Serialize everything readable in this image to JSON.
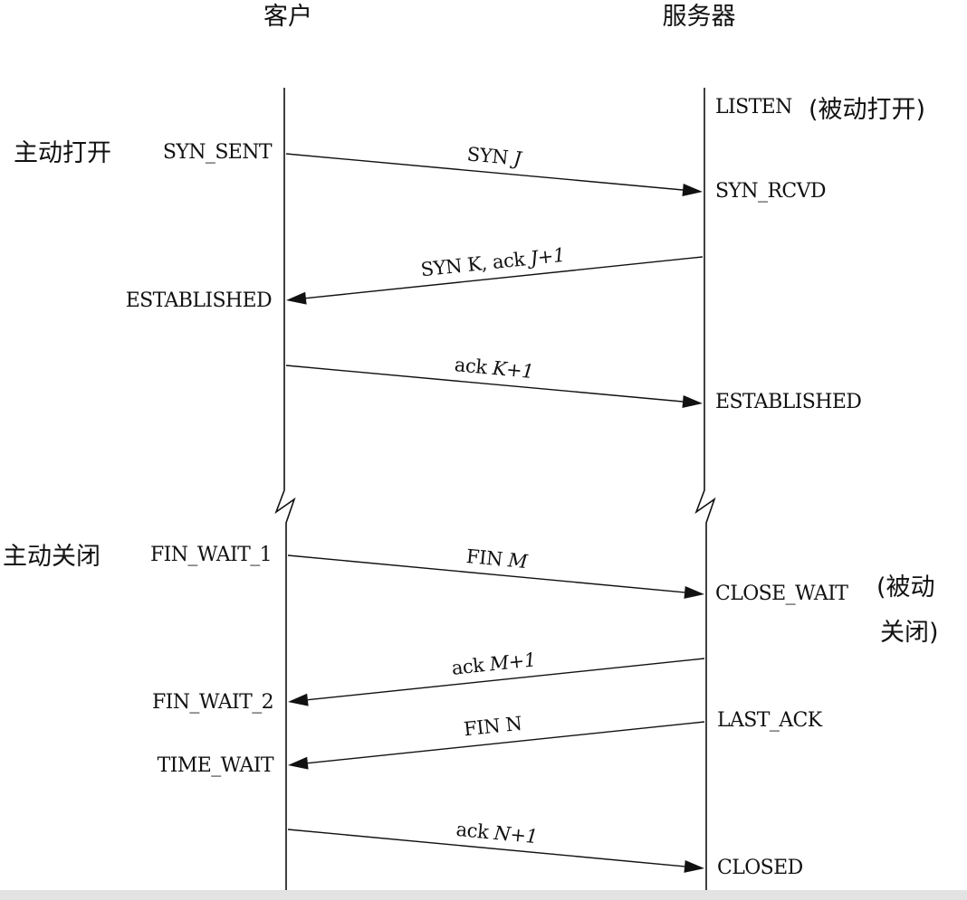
{
  "columns": {
    "client": "客户",
    "server": "服务器"
  },
  "client_notes": {
    "active_open": "主动打开",
    "active_close": "主动关闭"
  },
  "server_notes": {
    "passive_open": "(被动打开)",
    "passive_close_1": "(被动",
    "passive_close_2": "关闭)"
  },
  "client_states": {
    "syn_sent": "SYN_SENT",
    "established": "ESTABLISHED",
    "fin_wait_1": "FIN_WAIT_1",
    "fin_wait_2": "FIN_WAIT_2",
    "time_wait": "TIME_WAIT"
  },
  "server_states": {
    "listen": "LISTEN",
    "syn_rcvd": "SYN_RCVD",
    "established": "ESTABLISHED",
    "close_wait": "CLOSE_WAIT",
    "last_ack": "LAST_ACK",
    "closed": "CLOSED"
  },
  "messages": [
    {
      "id": "syn",
      "plain": "SYN ",
      "italic": "J",
      "direction": "client-to-server"
    },
    {
      "id": "syn-ack",
      "plain": "SYN K, ack ",
      "italic": "J+1",
      "direction": "server-to-client"
    },
    {
      "id": "ack-k",
      "plain": "ack ",
      "italic": "K+1",
      "direction": "client-to-server"
    },
    {
      "id": "fin-m",
      "plain": "FIN ",
      "italic": "M",
      "direction": "client-to-server"
    },
    {
      "id": "ack-m",
      "plain": "ack ",
      "italic": "M+1",
      "direction": "server-to-client"
    },
    {
      "id": "fin-n",
      "plain": "FIN N",
      "italic": "",
      "direction": "server-to-client"
    },
    {
      "id": "ack-n",
      "plain": "ack ",
      "italic": "N+1",
      "direction": "client-to-server"
    }
  ]
}
